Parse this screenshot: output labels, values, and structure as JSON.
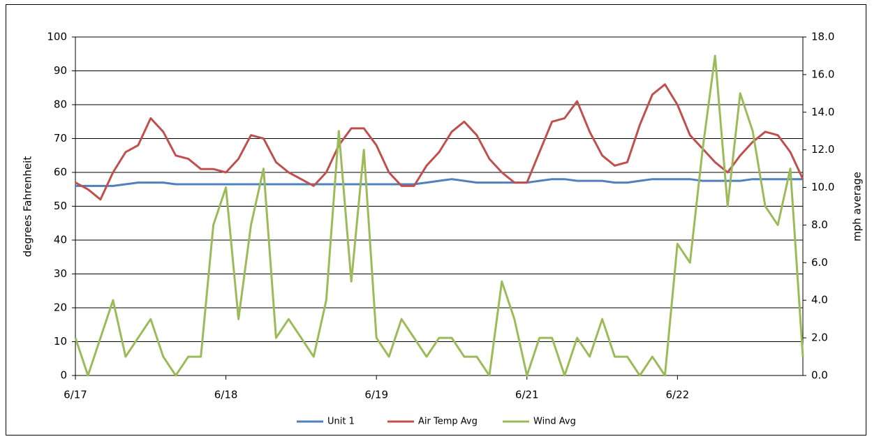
{
  "chart_data": {
    "type": "line",
    "y_label": "degrees Fahrenheit",
    "y2_label": "mph average",
    "categories": [
      "6/17",
      null,
      null,
      null,
      null,
      null,
      null,
      null,
      null,
      null,
      null,
      null,
      "6/18",
      null,
      null,
      null,
      null,
      null,
      null,
      null,
      null,
      null,
      null,
      null,
      "6/19",
      null,
      null,
      null,
      null,
      null,
      null,
      null,
      null,
      null,
      null,
      null,
      "6/21",
      null,
      null,
      null,
      null,
      null,
      null,
      null,
      null,
      null,
      null,
      null,
      "6/22",
      null,
      null,
      null,
      null,
      null,
      null,
      null,
      null,
      null,
      null
    ],
    "ylim": [
      0,
      100
    ],
    "yticks": [
      0,
      10,
      20,
      30,
      40,
      50,
      60,
      70,
      80,
      90,
      100
    ],
    "y2lim": [
      0,
      18
    ],
    "y2ticks": [
      {
        "value": 0,
        "label": "0.0"
      },
      {
        "value": 2,
        "label": "2.0"
      },
      {
        "value": 4,
        "label": "4.0"
      },
      {
        "value": 6,
        "label": "6.0"
      },
      {
        "value": 8,
        "label": "8.0"
      },
      {
        "value": 10,
        "label": "10.0"
      },
      {
        "value": 12,
        "label": "12.0"
      },
      {
        "value": 14,
        "label": "14.0"
      },
      {
        "value": 16,
        "label": "16.0"
      },
      {
        "value": 18,
        "label": "18.0"
      }
    ],
    "grid": true,
    "legend": "bottom",
    "series": [
      {
        "name": "Unit 1",
        "color": "#4f81bd",
        "values": [
          56,
          56,
          56,
          56,
          56.5,
          57,
          57,
          57,
          56.5,
          56.5,
          56.5,
          56.5,
          56.5,
          56.5,
          56.5,
          56.5,
          56.5,
          56.5,
          56.5,
          56.5,
          56.5,
          56.5,
          56.5,
          56.5,
          56.5,
          56.5,
          56.5,
          56.5,
          57,
          57.5,
          58,
          57.5,
          57,
          57,
          57,
          57,
          57,
          57.5,
          58,
          58,
          57.5,
          57.5,
          57.5,
          57,
          57,
          57.5,
          58,
          58,
          58,
          58,
          57.5,
          57.5,
          57.5,
          57.5,
          58,
          58,
          58,
          58,
          58
        ]
      },
      {
        "name": "Air Temp Avg",
        "color": "#c0504d",
        "values": [
          57,
          55,
          52,
          60,
          66,
          68,
          76,
          72,
          65,
          64,
          61,
          61,
          60,
          64,
          71,
          70,
          63,
          60,
          58,
          56,
          60,
          68,
          73,
          73,
          68,
          60,
          56,
          56,
          62,
          66,
          72,
          75,
          71,
          64,
          60,
          57,
          57,
          66,
          75,
          76,
          81,
          72,
          65,
          62,
          63,
          74,
          83,
          86,
          80,
          71,
          67,
          63,
          60,
          65,
          69,
          72,
          71,
          66,
          58
        ]
      },
      {
        "name": "Wind Avg",
        "color": "#9bbb59",
        "axis": "y2",
        "values": [
          2,
          0,
          2,
          4,
          1,
          2,
          3,
          1,
          0,
          1,
          1,
          8,
          10,
          3,
          8,
          11,
          2,
          3,
          2,
          1,
          4,
          13,
          5,
          12,
          2,
          1,
          3,
          2,
          1,
          2,
          2,
          1,
          1,
          0,
          5,
          3,
          0,
          2,
          2,
          0,
          2,
          1,
          3,
          1,
          1,
          0,
          1,
          0,
          7,
          6,
          12,
          17,
          9,
          15,
          13,
          9,
          8,
          11,
          1
        ]
      }
    ]
  }
}
